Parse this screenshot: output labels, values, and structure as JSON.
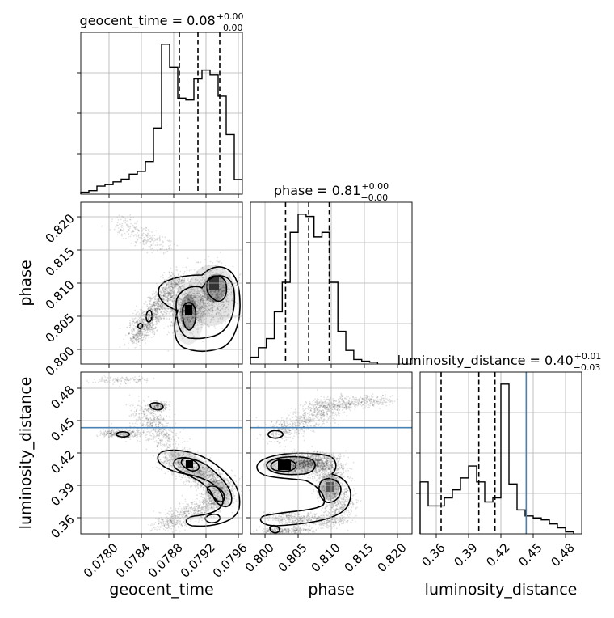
{
  "figure": {
    "type": "corner-plot",
    "grid": true,
    "truth_color": "#4682b4"
  },
  "chart_data": [
    {
      "type": "histogram",
      "param": "geocent_time",
      "title": "geocent_time = 0.08",
      "title_sup": "+0.00",
      "title_sub": "−0.00",
      "xlim": [
        0.07765,
        0.07965
      ],
      "bins": [
        0.07765,
        0.07775,
        0.07785,
        0.07795,
        0.07805,
        0.07815,
        0.07825,
        0.07835,
        0.07845,
        0.07855,
        0.07865,
        0.07875,
        0.07885,
        0.07895,
        0.07905,
        0.07915,
        0.07925,
        0.07935,
        0.07945,
        0.07955,
        0.07965
      ],
      "counts": [
        0.5,
        0.9,
        2.1,
        2.5,
        3.2,
        3.9,
        5.2,
        5.9,
        8.5,
        17.2,
        39.0,
        33.0,
        25.0,
        24.5,
        30.0,
        32.3,
        31.0,
        25.5,
        15.5,
        3.8
      ],
      "quantiles": [
        0.07887,
        0.0791,
        0.07937
      ]
    },
    {
      "type": "histogram",
      "param": "phase",
      "title": "phase = 0.81",
      "title_sup": "+0.00",
      "title_sub": "−0.00",
      "xlim": [
        0.7978,
        0.8222
      ],
      "bins": [
        0.7978,
        0.799,
        0.8002,
        0.8014,
        0.8026,
        0.8038,
        0.805,
        0.8062,
        0.8074,
        0.8086,
        0.8098,
        0.811,
        0.8122,
        0.8134,
        0.8146,
        0.8158,
        0.817
      ],
      "counts": [
        1.5,
        3.6,
        5.6,
        11.5,
        18.0,
        29.0,
        33.0,
        32.5,
        28.0,
        29.0,
        18.0,
        7.2,
        3.0,
        1.0,
        0.6,
        0.4
      ],
      "quantiles": [
        0.8031,
        0.8066,
        0.8097
      ]
    },
    {
      "type": "histogram",
      "param": "luminosity_distance",
      "title": "luminosity_distance = 0.40",
      "title_sup": "+0.01",
      "title_sub": "−0.03",
      "xlim": [
        0.345,
        0.495
      ],
      "bins": [
        0.345,
        0.3525,
        0.36,
        0.3675,
        0.375,
        0.3825,
        0.39,
        0.3975,
        0.405,
        0.4125,
        0.42,
        0.4275,
        0.435,
        0.4425,
        0.45,
        0.4575,
        0.465,
        0.4725,
        0.48,
        0.4875
      ],
      "counts": [
        2.6,
        1.4,
        1.4,
        1.8,
        2.2,
        2.8,
        3.4,
        2.6,
        1.6,
        1.8,
        7.5,
        2.5,
        1.2,
        0.9,
        0.8,
        0.7,
        0.5,
        0.3,
        0.1
      ],
      "quantiles": [
        0.3645,
        0.3995,
        0.4145
      ],
      "truth": 0.4435
    },
    {
      "type": "2d-density",
      "x_param": "geocent_time",
      "y_param": "phase",
      "xlim": [
        0.07765,
        0.07965
      ],
      "ylim": [
        0.7978,
        0.8222
      ]
    },
    {
      "type": "2d-density",
      "x_param": "geocent_time",
      "y_param": "luminosity_distance",
      "xlim": [
        0.07765,
        0.07965
      ],
      "ylim": [
        0.345,
        0.495
      ],
      "truth_y": 0.4435
    },
    {
      "type": "2d-density",
      "x_param": "phase",
      "y_param": "luminosity_distance",
      "xlim": [
        0.7978,
        0.8222
      ],
      "ylim": [
        0.345,
        0.495
      ],
      "truth_y": 0.4435
    }
  ],
  "axes": {
    "geocent_time": {
      "label": "geocent_time",
      "ticks": [
        0.078,
        0.0784,
        0.0788,
        0.0792,
        0.0796
      ],
      "tick_labels": [
        "0.0780",
        "0.0784",
        "0.0788",
        "0.0792",
        "0.0796"
      ]
    },
    "phase": {
      "label": "phase",
      "ticks": [
        0.8,
        0.805,
        0.81,
        0.815,
        0.82
      ],
      "tick_labels": [
        "0.800",
        "0.805",
        "0.810",
        "0.815",
        "0.820"
      ]
    },
    "luminosity_distance": {
      "label": "luminosity_distance",
      "ticks": [
        0.36,
        0.39,
        0.42,
        0.45,
        0.48
      ],
      "tick_labels": [
        "0.36",
        "0.39",
        "0.42",
        "0.45",
        "0.48"
      ]
    }
  }
}
